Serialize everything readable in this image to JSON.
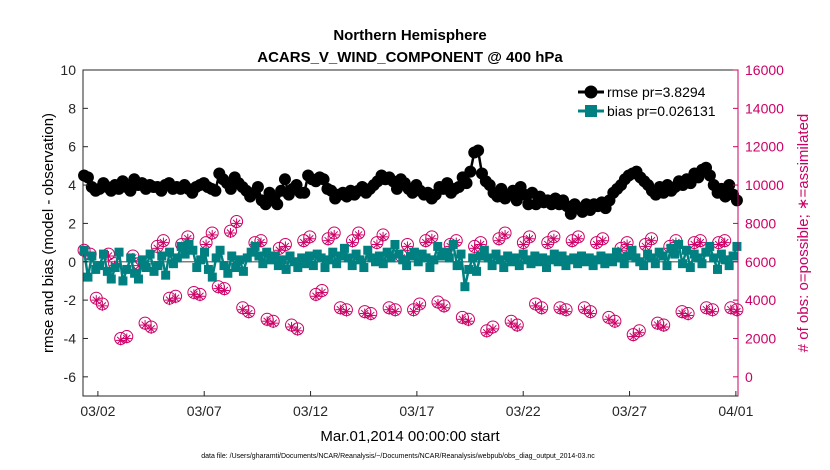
{
  "chart_data": {
    "type": "line",
    "title": "Northern Hemisphere",
    "subtitle": "ACARS_V_WIND_COMPONENT @ 400 hPa",
    "xlabel": "Mar.01,2014 00:00:00 start",
    "ylabel_left": "rmse and bias (model - observation)",
    "ylabel_right": "# of obs: o=possible; ∗=assimilated",
    "footnote": "data file: /Users/gharamti/Documents/NCAR/Reanalysis/~/Documents/NCAR/Reanalysis/webpub/obs_diag_output_2014-03.nc",
    "x_ticks": [
      "03/02",
      "03/07",
      "03/12",
      "03/17",
      "03/22",
      "03/27",
      "04/01"
    ],
    "x_tick_days": [
      1,
      6,
      11,
      16,
      21,
      26,
      31
    ],
    "xlim_days": [
      0.3,
      31.1
    ],
    "ylim_left": [
      -7,
      10
    ],
    "yticks_left": [
      "10",
      "8",
      "6",
      "4",
      "2",
      "0",
      "-2",
      "-4",
      "-6"
    ],
    "ylim_right": [
      -1000,
      16000
    ],
    "yticks_right": [
      "16000",
      "14000",
      "12000",
      "10000",
      "8000",
      "6000",
      "4000",
      "2000",
      "0"
    ],
    "grid": false,
    "legend_position": "top-right",
    "colors": {
      "rmse": "#000000",
      "bias": "#008080",
      "obs": "#cc0066",
      "zero_line": "#808080"
    },
    "series": [
      {
        "name": "rmse pr=3.8294",
        "color": "#000000",
        "marker": "circle",
        "values": [
          4.5,
          4.4,
          3.9,
          3.7,
          3.8,
          4.1,
          3.9,
          3.7,
          4.0,
          3.8,
          4.2,
          3.9,
          3.7,
          4.3,
          4.0,
          4.1,
          3.8,
          4.0,
          3.9,
          3.9,
          3.7,
          4.0,
          4.1,
          3.8,
          3.9,
          3.8,
          4.0,
          3.8,
          3.6,
          3.9,
          4.0,
          4.1,
          3.9,
          3.8,
          3.7,
          4.6,
          4.3,
          4.1,
          3.8,
          4.4,
          4.1,
          3.9,
          3.7,
          3.4,
          3.6,
          3.9,
          3.2,
          3.0,
          3.6,
          3.3,
          3.0,
          3.7,
          4.3,
          3.5,
          3.8,
          4.0,
          3.6,
          3.6,
          4.5,
          4.3,
          4.2,
          4.4,
          4.3,
          3.8,
          3.7,
          3.3,
          3.5,
          3.6,
          3.4,
          3.7,
          3.5,
          3.7,
          3.9,
          3.6,
          3.8,
          4.0,
          4.2,
          4.5,
          4.3,
          4.4,
          4.2,
          3.8,
          4.3,
          4.1,
          3.8,
          3.6,
          4.0,
          3.7,
          3.5,
          3.6,
          3.3,
          3.5,
          3.9,
          3.8,
          4.1,
          3.6,
          3.8,
          3.9,
          4.4,
          4.1,
          4.7,
          5.7,
          5.8,
          4.6,
          4.2,
          4.0,
          3.6,
          3.4,
          3.8,
          3.3,
          3.5,
          3.7,
          3.2,
          3.9,
          3.5,
          3.0,
          3.6,
          3.0,
          3.4,
          3.1,
          3.2,
          3.0,
          3.3,
          3.0,
          3.2,
          2.9,
          2.5,
          3.0,
          2.8,
          2.6,
          3.0,
          2.7,
          3.0,
          2.9,
          3.1,
          2.8,
          3.2,
          3.6,
          3.8,
          4.0,
          4.3,
          4.5,
          4.6,
          4.7,
          4.4,
          4.2,
          4.0,
          3.7,
          3.5,
          3.9,
          3.6,
          4.0,
          3.7,
          3.9,
          4.2,
          4.0,
          4.3,
          4.1,
          4.6,
          4.4,
          4.8,
          4.9,
          4.5,
          4.0,
          3.6,
          3.8,
          3.4,
          4.0,
          3.5,
          3.2
        ]
      },
      {
        "name": "bias pr=0.026131",
        "color": "#008080",
        "marker": "square",
        "values": [
          0.6,
          -0.8,
          0.3,
          -0.4,
          -0.2,
          0.4,
          -0.5,
          -0.9,
          -0.3,
          0.5,
          -1.0,
          -0.4,
          0.2,
          -0.6,
          -0.9,
          0.1,
          -0.3,
          0.4,
          -0.5,
          -0.2,
          0.3,
          -0.7,
          0.5,
          -0.1,
          0.2,
          0.8,
          0.4,
          0.9,
          0.6,
          -0.3,
          0.1,
          0.5,
          -0.4,
          -0.8,
          0.2,
          0.6,
          -0.2,
          -0.6,
          0.3,
          -0.3,
          0.1,
          -0.5,
          0.2,
          0.5,
          0.8,
          0.3,
          -0.1,
          0.5,
          0.1,
          0.3,
          -0.2,
          0.1,
          -0.4,
          0.3,
          0.0,
          -0.3,
          0.2,
          -0.1,
          0.3,
          -0.2,
          0.4,
          0.2,
          -0.3,
          0.1,
          0.5,
          -0.1,
          0.3,
          0.7,
          0.2,
          -0.2,
          0.4,
          0.1,
          -0.3,
          0.6,
          0.2,
          0.0,
          0.3,
          -0.1,
          0.5,
          0.2,
          0.9,
          0.4,
          0.1,
          -0.2,
          0.3,
          0.5,
          0.0,
          0.4,
          0.2,
          -0.3,
          0.1,
          0.8,
          0.3,
          0.5,
          0.2,
          0.9,
          -0.2,
          0.4,
          -1.3,
          -0.4,
          0.2,
          -0.5,
          0.3,
          0.6,
          0.2,
          -0.2,
          0.4,
          0.1,
          -0.3,
          0.3,
          0.0,
          0.2,
          -0.2,
          0.4,
          0.1,
          -0.1,
          0.3,
          0.0,
          0.2,
          -0.3,
          0.1,
          0.4,
          0.0,
          0.3,
          -0.2,
          0.1,
          0.2,
          -0.1,
          0.3,
          0.0,
          0.2,
          -0.2,
          0.1,
          0.3,
          -0.1,
          0.2,
          0.0,
          0.5,
          0.2,
          -0.1,
          0.3,
          0.6,
          0.2,
          0.0,
          -0.2,
          0.4,
          0.2,
          -0.1,
          0.5,
          0.3,
          -0.2,
          0.7,
          0.4,
          0.9,
          -0.1,
          0.6,
          -0.3,
          0.4,
          0.2,
          -0.1,
          0.5,
          0.8,
          0.2,
          -0.4,
          0.4,
          0.1,
          -0.2,
          0.3,
          0.8
        ]
      },
      {
        "name": "possible obs",
        "color": "#cc0066",
        "marker": "circle-open",
        "values": [
          6600,
          6400,
          4100,
          3800,
          6400,
          5900,
          2000,
          2100,
          6300,
          5900,
          2800,
          2600,
          6800,
          7100,
          4100,
          4200,
          6900,
          7300,
          4400,
          4300,
          7000,
          7500,
          4700,
          4600,
          7600,
          8100,
          3600,
          3400,
          7000,
          7100,
          3000,
          2900,
          6700,
          6900,
          2700,
          2500,
          7100,
          7300,
          4300,
          4500,
          7200,
          7500,
          3600,
          3500,
          7100,
          7500,
          3400,
          3300,
          7000,
          7400,
          3600,
          3500,
          6300,
          6900,
          3500,
          3800,
          7100,
          7300,
          3900,
          3700,
          6900,
          7100,
          3100,
          3000,
          6800,
          7000,
          2400,
          2600,
          7200,
          7500,
          2900,
          2700,
          7000,
          7300,
          3800,
          3600,
          7000,
          7300,
          3600,
          3500,
          7100,
          7300,
          3600,
          3400,
          7000,
          7200,
          3100,
          2900,
          6700,
          7000,
          2200,
          2400,
          6900,
          7200,
          2800,
          2700,
          6800,
          7100,
          3400,
          3300,
          7000,
          7100,
          3600,
          3500,
          7000,
          7100,
          3600,
          3500
        ]
      },
      {
        "name": "assimilated obs",
        "color": "#cc0066",
        "marker": "asterisk",
        "values": [
          6500,
          6300,
          4000,
          3700,
          6300,
          5800,
          1900,
          2000,
          6200,
          5800,
          2700,
          2500,
          6700,
          7000,
          4000,
          4100,
          6800,
          7200,
          4300,
          4200,
          6900,
          7400,
          4600,
          4500,
          7500,
          8000,
          3500,
          3300,
          6900,
          7000,
          2900,
          2800,
          6600,
          6800,
          2600,
          2400,
          7000,
          7200,
          4200,
          4400,
          7100,
          7400,
          3500,
          3400,
          7000,
          7400,
          3300,
          3200,
          6900,
          7300,
          3500,
          3400,
          6200,
          6800,
          3400,
          3700,
          7000,
          7200,
          3800,
          3600,
          6800,
          7000,
          3000,
          2900,
          6700,
          6900,
          2300,
          2500,
          7100,
          7400,
          2800,
          2600,
          6900,
          7200,
          3700,
          3500,
          6900,
          7200,
          3500,
          3400,
          7000,
          7200,
          3500,
          3300,
          6900,
          7100,
          3000,
          2800,
          6600,
          6900,
          2100,
          2300,
          6800,
          7100,
          2700,
          2600,
          6700,
          7000,
          3300,
          3200,
          6900,
          7000,
          3500,
          3400,
          6900,
          7000,
          3500,
          3400
        ]
      }
    ]
  }
}
